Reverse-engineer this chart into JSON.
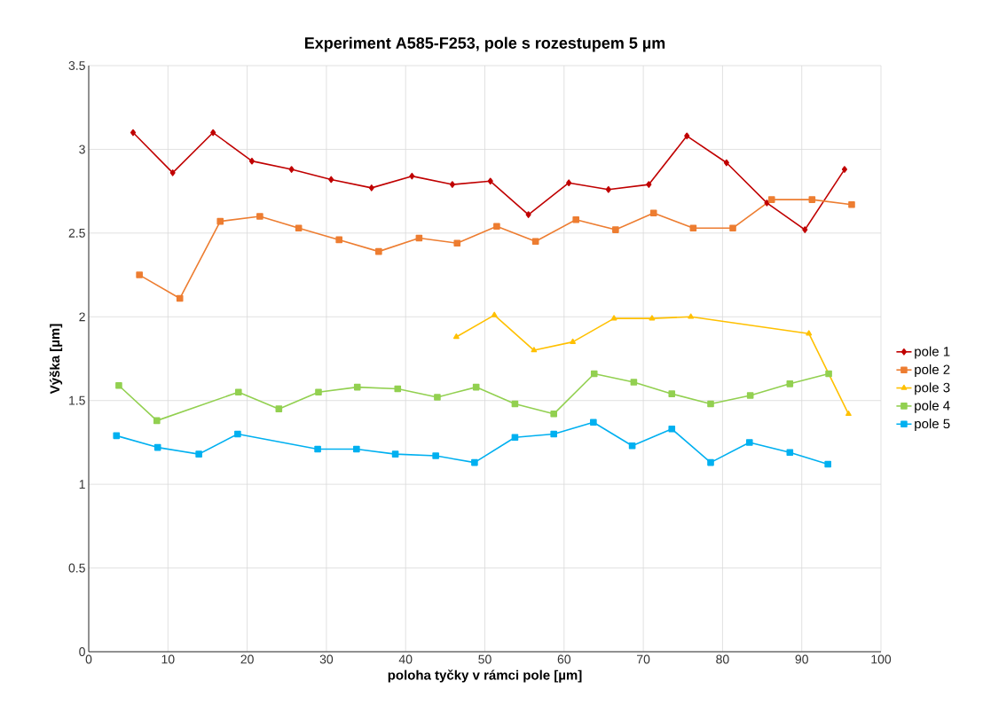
{
  "chart_data": {
    "type": "line",
    "title": "Experiment A585-F253, pole s rozestupem 5 µm",
    "xlabel": "poloha tyčky v rámci pole [µm]",
    "ylabel": "Výška [µm]",
    "xlim": [
      0,
      100
    ],
    "xticks": [
      0,
      10,
      20,
      30,
      40,
      50,
      60,
      70,
      80,
      90,
      100
    ],
    "ylim": [
      0,
      3.5
    ],
    "yticks": [
      0,
      0.5,
      1,
      1.5,
      2,
      2.5,
      3,
      3.5
    ],
    "grid": true,
    "legend": "right",
    "series": [
      {
        "name": "pole 1",
        "color": "#c00000",
        "marker": "diamond",
        "x": [
          5.6,
          10.6,
          15.7,
          20.6,
          25.6,
          30.6,
          35.7,
          40.8,
          45.9,
          50.7,
          55.5,
          60.6,
          65.6,
          70.7,
          75.5,
          80.5,
          85.6,
          90.4,
          95.4
        ],
        "values": [
          3.1,
          2.86,
          3.1,
          2.93,
          2.88,
          2.82,
          2.77,
          2.84,
          2.79,
          2.81,
          2.61,
          2.8,
          2.76,
          2.79,
          3.08,
          2.92,
          2.68,
          2.52,
          2.88
        ]
      },
      {
        "name": "pole 2",
        "color": "#ed7d31",
        "marker": "square",
        "x": [
          6.4,
          11.5,
          16.6,
          21.6,
          26.5,
          31.6,
          36.6,
          41.7,
          46.5,
          51.5,
          56.4,
          61.5,
          66.5,
          71.3,
          76.3,
          81.3,
          86.2,
          91.3,
          96.3
        ],
        "values": [
          2.25,
          2.11,
          2.57,
          2.6,
          2.53,
          2.46,
          2.39,
          2.47,
          2.44,
          2.54,
          2.45,
          2.58,
          2.52,
          2.62,
          2.53,
          2.53,
          2.7,
          2.7,
          2.67
        ]
      },
      {
        "name": "pole 3",
        "color": "#ffc000",
        "marker": "triangle",
        "x": [
          46.4,
          51.2,
          56.2,
          61.1,
          66.3,
          71.1,
          76.0,
          90.9,
          95.9
        ],
        "values": [
          1.88,
          2.01,
          1.8,
          1.85,
          1.99,
          1.99,
          2.0,
          1.9,
          1.42
        ]
      },
      {
        "name": "pole 4",
        "color": "#92d050",
        "marker": "square",
        "x": [
          3.8,
          8.6,
          18.9,
          24.0,
          29.0,
          33.9,
          39.0,
          44.0,
          48.9,
          53.8,
          58.7,
          63.8,
          68.8,
          73.6,
          78.5,
          83.5,
          88.5,
          93.4
        ],
        "values": [
          1.59,
          1.38,
          1.55,
          1.45,
          1.55,
          1.58,
          1.57,
          1.52,
          1.58,
          1.48,
          1.42,
          1.66,
          1.61,
          1.54,
          1.48,
          1.53,
          1.6,
          1.66
        ]
      },
      {
        "name": "pole 5",
        "color": "#00b0f0",
        "marker": "square",
        "x": [
          3.5,
          8.7,
          13.9,
          18.8,
          28.9,
          33.8,
          38.7,
          43.8,
          48.7,
          53.8,
          58.7,
          63.7,
          68.6,
          73.6,
          78.5,
          83.4,
          88.5,
          93.3
        ],
        "values": [
          1.29,
          1.22,
          1.18,
          1.3,
          1.21,
          1.21,
          1.18,
          1.17,
          1.13,
          1.28,
          1.3,
          1.37,
          1.23,
          1.33,
          1.13,
          1.25,
          1.19,
          1.12
        ]
      }
    ]
  }
}
